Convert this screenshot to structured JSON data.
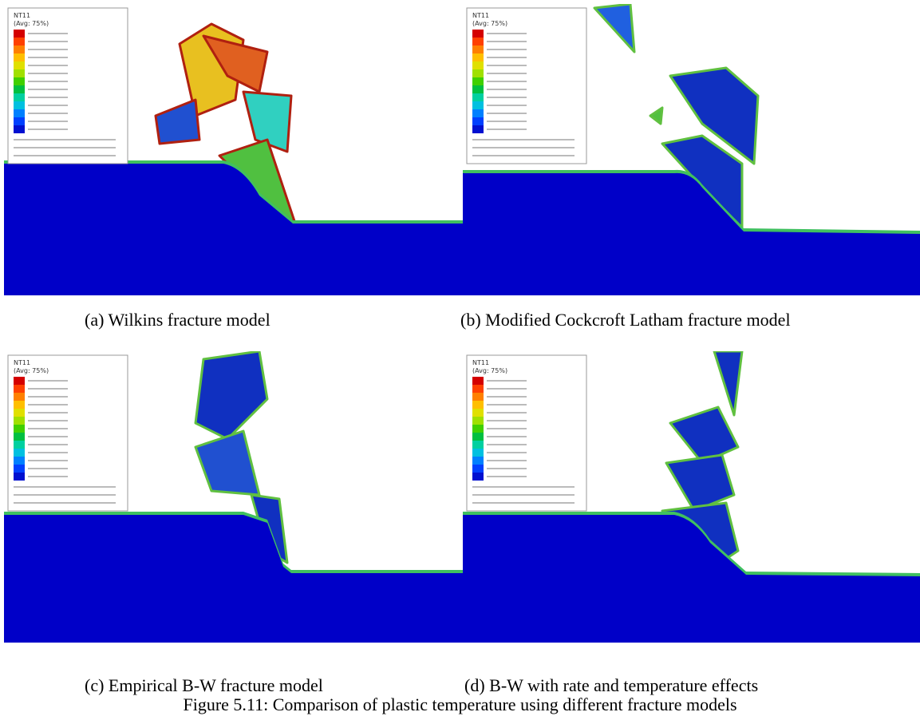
{
  "figure": {
    "panels": [
      {
        "legend_title": "NT11",
        "legend_subtitle": "(Avg: 75%)",
        "caption": "(a) Wilkins fracture model"
      },
      {
        "legend_title": "NT11",
        "legend_subtitle": "(Avg: 75%)",
        "caption": "(b) Modified Cockcroft Latham fracture model"
      },
      {
        "legend_title": "NT11",
        "legend_subtitle": "(Avg: 75%)",
        "caption": "(c) Empirical B-W fracture model"
      },
      {
        "legend_title": "NT11",
        "legend_subtitle": "(Avg: 75%)",
        "caption": "(d) B-W with rate and temperature effects"
      }
    ],
    "caption": "Figure 5.11: Comparison of plastic temperature using different fracture models"
  }
}
